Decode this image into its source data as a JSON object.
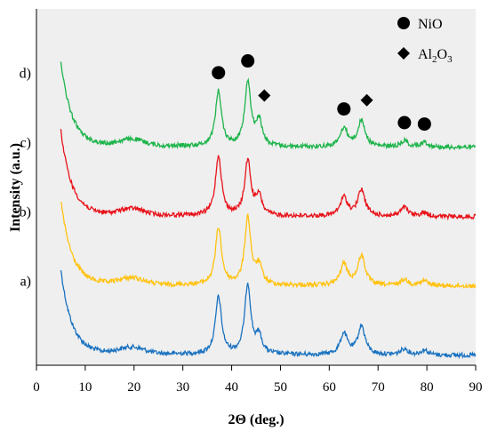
{
  "chart_data": {
    "type": "line",
    "xlabel": "2Θ (deg.)",
    "ylabel": "Intensity (a.u.)",
    "xlim": [
      0,
      90
    ],
    "xticks": [
      0,
      10,
      20,
      30,
      40,
      50,
      60,
      70,
      80,
      90
    ],
    "y_tick_labels": false,
    "grid": false,
    "plot_background": "#efefef",
    "series": [
      {
        "label": "a)",
        "color": "#1a72c0",
        "offset": 0.0,
        "peaks": [
          [
            37.3,
            2.3
          ],
          [
            43.3,
            2.8
          ],
          [
            45.6,
            0.7
          ],
          [
            63.0,
            0.85
          ],
          [
            66.6,
            1.15
          ],
          [
            75.4,
            0.25
          ],
          [
            79.5,
            0.2
          ]
        ]
      },
      {
        "label": "b)",
        "color": "#ffc20e",
        "offset": 1.0,
        "peaks": [
          [
            37.3,
            2.3
          ],
          [
            43.3,
            2.7
          ],
          [
            45.6,
            0.75
          ],
          [
            63.0,
            0.85
          ],
          [
            66.6,
            1.2
          ],
          [
            75.4,
            0.25
          ],
          [
            79.5,
            0.2
          ]
        ]
      },
      {
        "label": "c)",
        "color": "#e8121a",
        "offset": 2.0,
        "peaks": [
          [
            37.3,
            2.4
          ],
          [
            43.3,
            2.2
          ],
          [
            45.6,
            0.75
          ],
          [
            63.0,
            0.75
          ],
          [
            66.6,
            1.05
          ],
          [
            75.4,
            0.35
          ],
          [
            79.5,
            0.15
          ]
        ]
      },
      {
        "label": "d)",
        "color": "#1db44a",
        "offset": 3.0,
        "peaks": [
          [
            37.3,
            2.2
          ],
          [
            43.3,
            2.6
          ],
          [
            45.6,
            1.0
          ],
          [
            63.0,
            0.75
          ],
          [
            66.6,
            1.05
          ],
          [
            75.4,
            0.25
          ],
          [
            79.5,
            0.2
          ]
        ]
      }
    ],
    "markers": {
      "NiO": [
        37.3,
        43.3,
        63.0,
        75.4,
        79.5
      ],
      "Al2O3": [
        45.6,
        66.6
      ]
    },
    "legend": {
      "placement": "top-right",
      "items": [
        {
          "symbol": "circle",
          "label": "NiO"
        },
        {
          "symbol": "diamond",
          "label_parts": [
            "Al",
            "2",
            "O",
            "3"
          ]
        }
      ]
    }
  }
}
